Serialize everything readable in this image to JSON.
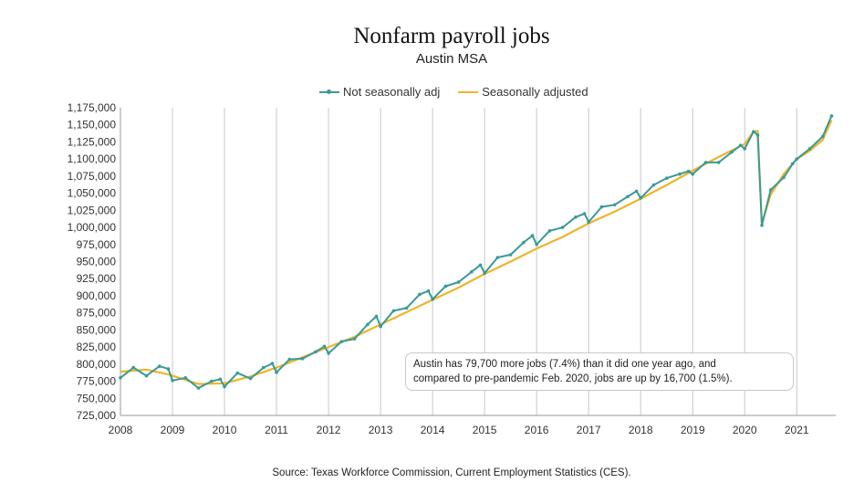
{
  "chart_data": {
    "type": "line",
    "title": "Nonfarm payroll jobs",
    "subtitle": "Austin MSA",
    "ylim": [
      725000,
      1175000
    ],
    "xlim": [
      2008,
      2021.75
    ],
    "y_ticks": [
      "725,000",
      "750,000",
      "775,000",
      "800,000",
      "825,000",
      "850,000",
      "875,000",
      "900,000",
      "925,000",
      "950,000",
      "975,000",
      "1,000,000",
      "1,025,000",
      "1,050,000",
      "1,075,000",
      "1,100,000",
      "1,125,000",
      "1,150,000",
      "1,175,000"
    ],
    "x_ticks": [
      "2008",
      "2009",
      "2010",
      "2011",
      "2012",
      "2013",
      "2014",
      "2015",
      "2016",
      "2017",
      "2018",
      "2019",
      "2020",
      "2021"
    ],
    "grid": "vertical lines at each year",
    "legend_position": "top",
    "series": [
      {
        "name": "Not seasonally adj",
        "color": "#3a9a96",
        "marker": "circle",
        "x": [
          2008.0,
          2008.25,
          2008.5,
          2008.75,
          2008.92,
          2009.0,
          2009.25,
          2009.5,
          2009.75,
          2009.92,
          2010.0,
          2010.25,
          2010.5,
          2010.75,
          2010.92,
          2011.0,
          2011.25,
          2011.5,
          2011.75,
          2011.92,
          2012.0,
          2012.25,
          2012.5,
          2012.75,
          2012.92,
          2013.0,
          2013.25,
          2013.5,
          2013.75,
          2013.92,
          2014.0,
          2014.25,
          2014.5,
          2014.75,
          2014.92,
          2015.0,
          2015.25,
          2015.5,
          2015.75,
          2015.92,
          2016.0,
          2016.25,
          2016.5,
          2016.75,
          2016.92,
          2017.0,
          2017.25,
          2017.5,
          2017.75,
          2017.92,
          2018.0,
          2018.25,
          2018.5,
          2018.75,
          2018.92,
          2019.0,
          2019.25,
          2019.5,
          2019.75,
          2019.92,
          2020.0,
          2020.17,
          2020.25,
          2020.33,
          2020.5,
          2020.75,
          2020.92,
          2021.0,
          2021.25,
          2021.5,
          2021.67
        ],
        "values": [
          780000,
          795000,
          783000,
          797000,
          793000,
          776000,
          780000,
          765000,
          775000,
          778000,
          767000,
          787000,
          779000,
          795000,
          801000,
          788000,
          807000,
          808000,
          818000,
          826000,
          816000,
          833000,
          837000,
          858000,
          870000,
          855000,
          878000,
          882000,
          902000,
          907000,
          895000,
          914000,
          920000,
          935000,
          945000,
          933000,
          956000,
          960000,
          978000,
          988000,
          975000,
          995000,
          1000000,
          1015000,
          1020000,
          1008000,
          1030000,
          1033000,
          1045000,
          1053000,
          1043000,
          1062000,
          1072000,
          1078000,
          1082000,
          1078000,
          1095000,
          1095000,
          1110000,
          1120000,
          1115000,
          1140000,
          1135000,
          1003000,
          1055000,
          1073000,
          1093000,
          1100000,
          1115000,
          1133000,
          1163000
        ]
      },
      {
        "name": "Seasonally adjusted",
        "color": "#f0b429",
        "x": [
          2008.0,
          2008.5,
          2008.92,
          2009.5,
          2010.0,
          2010.5,
          2011.0,
          2011.5,
          2012.0,
          2012.5,
          2013.0,
          2013.5,
          2014.0,
          2014.5,
          2015.0,
          2015.5,
          2016.0,
          2016.5,
          2017.0,
          2017.5,
          2018.0,
          2018.5,
          2019.0,
          2019.5,
          2020.0,
          2020.17,
          2020.25,
          2020.33,
          2020.5,
          2020.75,
          2021.0,
          2021.25,
          2021.5,
          2021.67
        ],
        "values": [
          789000,
          792000,
          785000,
          771000,
          772000,
          782000,
          795000,
          810000,
          825000,
          840000,
          858000,
          876000,
          894000,
          912000,
          932000,
          950000,
          969000,
          986000,
          1006000,
          1023000,
          1042000,
          1062000,
          1083000,
          1103000,
          1122000,
          1140000,
          1141000,
          1006000,
          1048000,
          1078000,
          1100000,
          1112000,
          1128000,
          1157000
        ]
      }
    ],
    "annotation": [
      "Austin has 79,700 more jobs (7.4%) than it did one year ago, and",
      "compared to pre-pandemic Feb. 2020, jobs are up by 16,700 (1.5%)."
    ],
    "source": "Source: Texas Workforce Commission, Current Employment Statistics (CES)."
  }
}
